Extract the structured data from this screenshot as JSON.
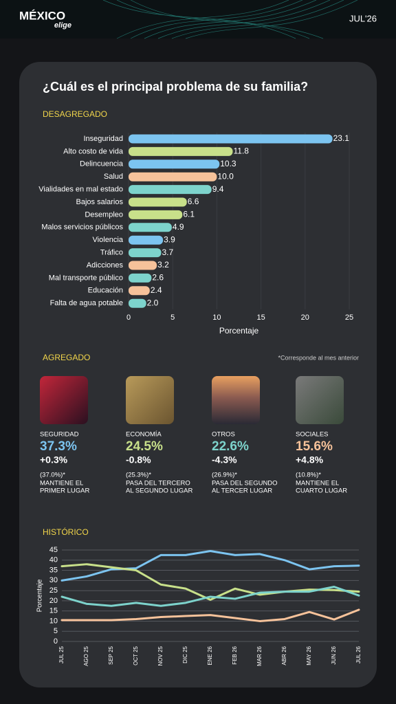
{
  "header": {
    "logo": "MÉXICO",
    "logo_sub": "elige",
    "date": "JUL'26"
  },
  "title": "¿Cuál es el principal problema de su familia?",
  "sections": {
    "disaggregated": "DESAGREGADO",
    "aggregated": "AGREGADO",
    "aggregated_note": "*Corresponde al mes anterior",
    "historical": "HISTÓRICO"
  },
  "chart_data": [
    {
      "type": "bar",
      "orientation": "horizontal",
      "categories": [
        "Inseguridad",
        "Alto costo de vida",
        "Delincuencia",
        "Salud",
        "Vialidades en mal estado",
        "Bajos salarios",
        "Desempleo",
        "Malos servicios públicos",
        "Violencia",
        "Tráfico",
        "Adicciones",
        "Mal transporte público",
        "Educación",
        "Falta de agua potable"
      ],
      "values": [
        23.1,
        11.8,
        10.3,
        10.0,
        9.4,
        6.6,
        6.1,
        4.9,
        3.9,
        3.7,
        3.2,
        2.6,
        2.4,
        2.0
      ],
      "value_labels": [
        "23.1",
        "11.8",
        "10.3",
        "10.0",
        "9.4",
        "6.6",
        "6.1",
        "4.9",
        "3.9",
        "3.7",
        "3.2",
        "2.6",
        "2.4",
        "2.0"
      ],
      "colors": [
        "#7cc4f0",
        "#c8e08a",
        "#7cc4f0",
        "#f6c29a",
        "#7dd3cc",
        "#c8e08a",
        "#c8e08a",
        "#7dd3cc",
        "#7cc4f0",
        "#7dd3cc",
        "#f6c29a",
        "#7dd3cc",
        "#f6c29a",
        "#7dd3cc"
      ],
      "xlabel": "Porcentaje",
      "xlim": [
        0,
        25
      ],
      "xticks": [
        0,
        5,
        10,
        15,
        20,
        25
      ],
      "grid": true
    },
    {
      "type": "line",
      "categories": [
        "JUL 25",
        "AGO 25",
        "SEP 25",
        "OCT 25",
        "NOV 25",
        "DIC 25",
        "ENE 26",
        "FEB 26",
        "MAR 26",
        "ABR 26",
        "MAY 26",
        "JUN 26",
        "JUL 26"
      ],
      "ylabel": "Porcentaje",
      "ylim": [
        0,
        45
      ],
      "yticks": [
        0,
        5,
        10,
        15,
        20,
        25,
        30,
        35,
        40,
        45
      ],
      "grid": true,
      "series": [
        {
          "color": "#7cc4f0",
          "values": [
            30,
            32,
            35.5,
            36,
            42.5,
            42.5,
            44.5,
            42.5,
            43,
            40,
            35.5,
            37,
            37.3
          ]
        },
        {
          "color": "#c8e08a",
          "values": [
            37,
            38,
            36.5,
            35,
            28,
            26,
            20.5,
            26,
            23,
            24.5,
            25.5,
            25.3,
            24.5
          ]
        },
        {
          "color": "#7dd3cc",
          "values": [
            22,
            18.5,
            17.5,
            19,
            17.5,
            19,
            22,
            21,
            24,
            24.5,
            24.5,
            26.9,
            22.6
          ]
        },
        {
          "color": "#f6c29a",
          "values": [
            10.5,
            10.5,
            10.5,
            11,
            12,
            12.5,
            13,
            11.5,
            10,
            11,
            14.5,
            10.8,
            15.6
          ]
        }
      ]
    }
  ],
  "cards": [
    {
      "label": "SEGURIDAD",
      "value": "37.3%",
      "change": "+0.3%",
      "previous": "(37.0%)*",
      "note": [
        "MANTIENE EL",
        "PRIMER LUGAR"
      ],
      "color": "#7cc4f0"
    },
    {
      "label": "ECONOMÍA",
      "value": "24.5%",
      "change": "-0.8%",
      "previous": "(25.3%)*",
      "note": [
        "PASA DEL TERCERO",
        "AL SEGUNDO LUGAR"
      ],
      "color": "#c8e08a"
    },
    {
      "label": "OTROS",
      "value": "22.6%",
      "change": "-4.3%",
      "previous": "(26.9%)*",
      "note": [
        "PASA DEL SEGUNDO",
        "AL TERCER LUGAR"
      ],
      "color": "#7dd3cc"
    },
    {
      "label": "SOCIALES",
      "value": "15.6%",
      "change": "+4.8%",
      "previous": "(10.8%)*",
      "note": [
        "MANTIENE EL",
        "CUARTO LUGAR"
      ],
      "color": "#f6c29a"
    }
  ]
}
